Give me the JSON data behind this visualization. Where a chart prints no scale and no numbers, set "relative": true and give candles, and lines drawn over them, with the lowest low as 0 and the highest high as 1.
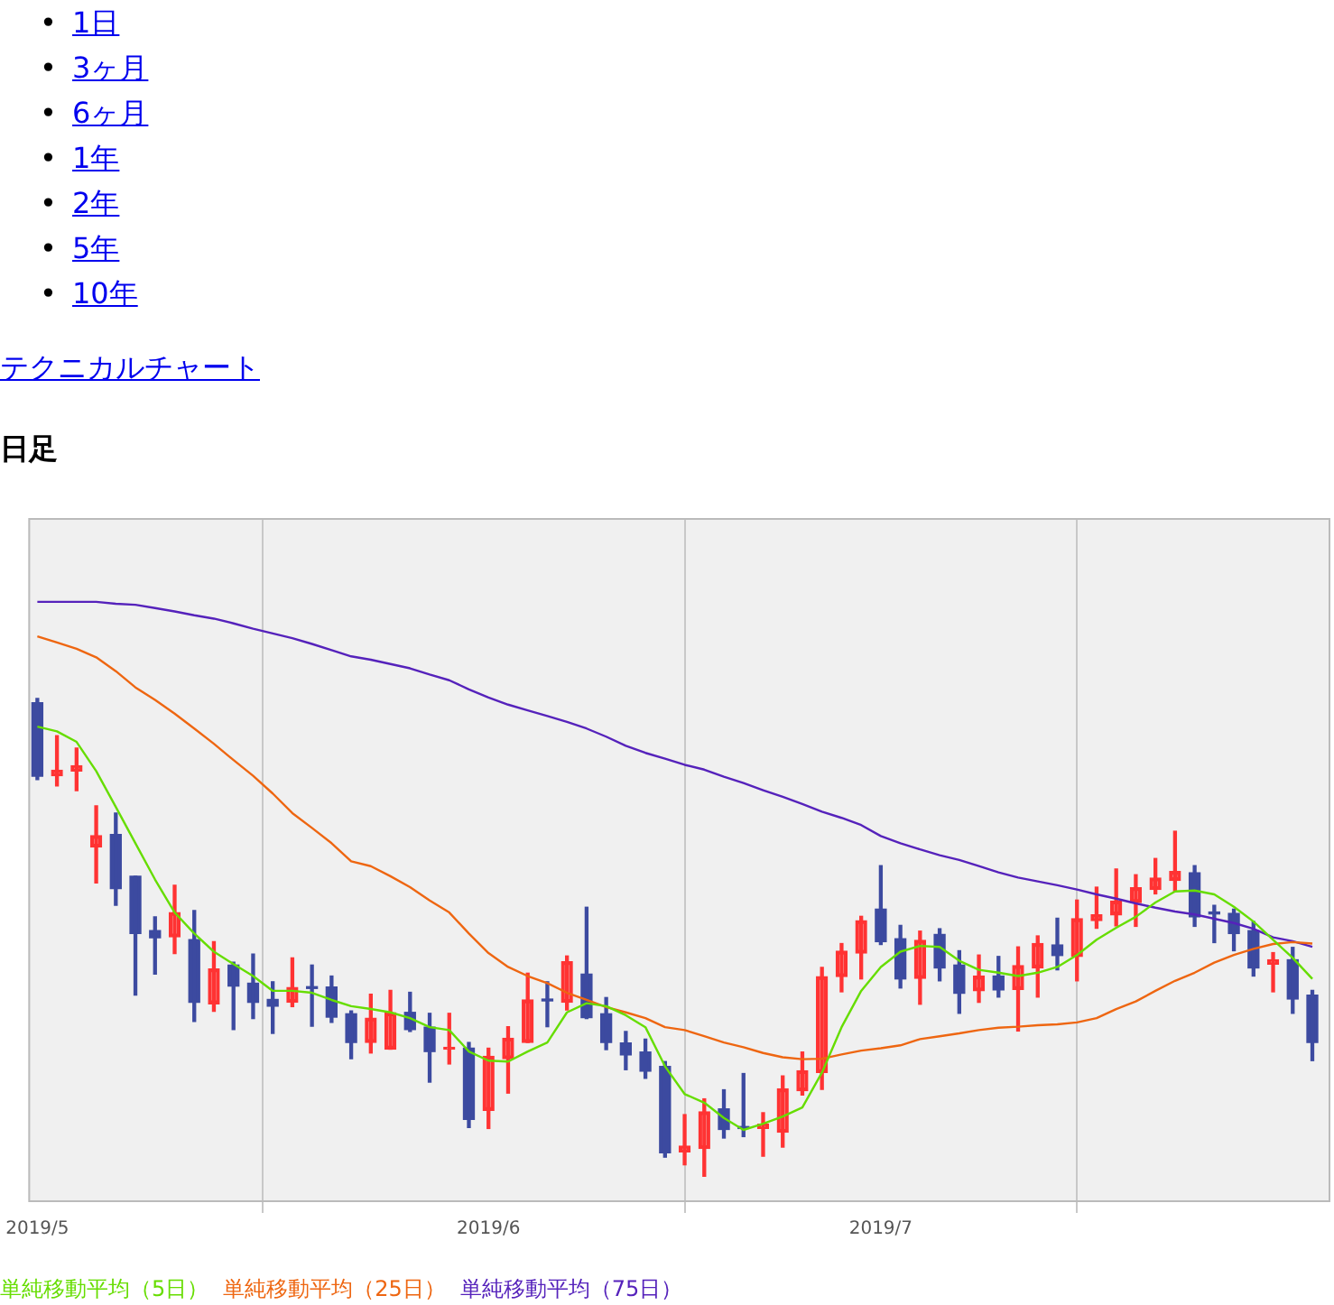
{
  "chart_data": {
    "type": "candlestick",
    "title": "日足",
    "subtitle": "テクニカルチャート",
    "annotations": [
      "• 1日",
      "• 3ヶ月",
      "• 6ヶ月",
      "• 1年",
      "• 2年",
      "• 5年",
      "• 10年"
    ],
    "relative": true,
    "grid": "x",
    "legend": "bottom",
    "categories": [
      "2019/5",
      null,
      null,
      null,
      null,
      null,
      null,
      null,
      null,
      null,
      null,
      null,
      null,
      null,
      null,
      null,
      null,
      null,
      null,
      null,
      null,
      null,
      null,
      "2019/6",
      null,
      null,
      null,
      null,
      null,
      null,
      null,
      null,
      null,
      null,
      null,
      null,
      null,
      null,
      null,
      null,
      null,
      null,
      null,
      "2019/7",
      null,
      null,
      null,
      null,
      null,
      null,
      null,
      null,
      null,
      null,
      null,
      null,
      null,
      null,
      null,
      null,
      null,
      null,
      null,
      null,
      null,
      null
    ],
    "ohlc": [
      [
        0.991,
        1.0,
        0.83,
        0.837
      ],
      [
        0.838,
        0.922,
        0.817,
        0.85
      ],
      [
        0.848,
        0.896,
        0.807,
        0.859
      ],
      [
        0.689,
        0.775,
        0.614,
        0.713
      ],
      [
        0.715,
        0.76,
        0.567,
        0.602
      ],
      [
        0.628,
        0.628,
        0.379,
        0.508
      ],
      [
        0.514,
        0.543,
        0.423,
        0.499
      ],
      [
        0.501,
        0.609,
        0.466,
        0.552
      ],
      [
        0.495,
        0.556,
        0.324,
        0.364
      ],
      [
        0.361,
        0.491,
        0.345,
        0.434
      ],
      [
        0.442,
        0.448,
        0.307,
        0.398
      ],
      [
        0.404,
        0.465,
        0.33,
        0.364
      ],
      [
        0.37,
        0.407,
        0.299,
        0.356
      ],
      [
        0.364,
        0.457,
        0.355,
        0.395
      ],
      [
        0.396,
        0.442,
        0.314,
        0.393
      ],
      [
        0.396,
        0.419,
        0.322,
        0.333
      ],
      [
        0.34,
        0.346,
        0.246,
        0.28
      ],
      [
        0.28,
        0.381,
        0.258,
        0.331
      ],
      [
        0.266,
        0.389,
        0.266,
        0.342
      ],
      [
        0.343,
        0.385,
        0.303,
        0.307
      ],
      [
        0.312,
        0.341,
        0.197,
        0.261
      ],
      [
        0.266,
        0.341,
        0.235,
        0.269
      ],
      [
        0.268,
        0.28,
        0.102,
        0.119
      ],
      [
        0.138,
        0.268,
        0.1,
        0.251
      ],
      [
        0.246,
        0.313,
        0.174,
        0.289
      ],
      [
        0.28,
        0.425,
        0.28,
        0.369
      ],
      [
        0.37,
        0.407,
        0.313,
        0.367
      ],
      [
        0.364,
        0.461,
        0.348,
        0.449
      ],
      [
        0.423,
        0.563,
        0.33,
        0.332
      ],
      [
        0.34,
        0.374,
        0.265,
        0.28
      ],
      [
        0.279,
        0.303,
        0.223,
        0.254
      ],
      [
        0.26,
        0.287,
        0.205,
        0.22
      ],
      [
        0.23,
        0.24,
        0.04,
        0.049
      ],
      [
        0.051,
        0.129,
        0.024,
        0.063
      ],
      [
        0.058,
        0.162,
        0.0,
        0.135
      ],
      [
        0.141,
        0.181,
        0.08,
        0.098
      ],
      [
        0.104,
        0.215,
        0.083,
        0.1
      ],
      [
        0.1,
        0.133,
        0.042,
        0.109
      ],
      [
        0.092,
        0.21,
        0.061,
        0.183
      ],
      [
        0.179,
        0.26,
        0.17,
        0.221
      ],
      [
        0.217,
        0.437,
        0.182,
        0.418
      ],
      [
        0.418,
        0.487,
        0.386,
        0.471
      ],
      [
        0.467,
        0.544,
        0.413,
        0.535
      ],
      [
        0.559,
        0.65,
        0.485,
        0.491
      ],
      [
        0.497,
        0.525,
        0.394,
        0.413
      ],
      [
        0.414,
        0.513,
        0.36,
        0.494
      ],
      [
        0.506,
        0.518,
        0.409,
        0.436
      ],
      [
        0.442,
        0.472,
        0.341,
        0.383
      ],
      [
        0.388,
        0.463,
        0.364,
        0.419
      ],
      [
        0.419,
        0.46,
        0.375,
        0.39
      ],
      [
        0.391,
        0.48,
        0.304,
        0.441
      ],
      [
        0.436,
        0.503,
        0.375,
        0.487
      ],
      [
        0.484,
        0.54,
        0.432,
        0.462
      ],
      [
        0.46,
        0.578,
        0.409,
        0.539
      ],
      [
        0.535,
        0.605,
        0.519,
        0.547
      ],
      [
        0.547,
        0.643,
        0.524,
        0.576
      ],
      [
        0.573,
        0.631,
        0.523,
        0.604
      ],
      [
        0.6,
        0.665,
        0.591,
        0.624
      ],
      [
        0.619,
        0.722,
        0.597,
        0.638
      ],
      [
        0.635,
        0.65,
        0.523,
        0.543
      ],
      [
        0.553,
        0.567,
        0.489,
        0.549
      ],
      [
        0.55,
        0.559,
        0.472,
        0.508
      ],
      [
        0.514,
        0.533,
        0.419,
        0.436
      ],
      [
        0.444,
        0.468,
        0.386,
        0.453
      ],
      [
        0.453,
        0.479,
        0.341,
        0.371
      ],
      [
        0.379,
        0.389,
        0.242,
        0.28
      ]
    ],
    "colors": [
      "#3c4aa0",
      "#ff3333",
      "#ff3333",
      "#ff3333",
      "#3c4aa0",
      "#3c4aa0",
      "#3c4aa0",
      "#ff3333",
      "#3c4aa0",
      "#ff3333",
      "#3c4aa0",
      "#3c4aa0",
      "#3c4aa0",
      "#ff3333",
      "#3c4aa0",
      "#3c4aa0",
      "#3c4aa0",
      "#ff3333",
      "#ff3333",
      "#3c4aa0",
      "#3c4aa0",
      "#ff3333",
      "#3c4aa0",
      "#ff3333",
      "#ff3333",
      "#ff3333",
      "#3c4aa0",
      "#ff3333",
      "#3c4aa0",
      "#3c4aa0",
      "#3c4aa0",
      "#3c4aa0",
      "#3c4aa0",
      "#ff3333",
      "#ff3333",
      "#3c4aa0",
      "#3c4aa0",
      "#ff3333",
      "#ff3333",
      "#ff3333",
      "#ff3333",
      "#ff3333",
      "#ff3333",
      "#3c4aa0",
      "#3c4aa0",
      "#ff3333",
      "#3c4aa0",
      "#3c4aa0",
      "#ff3333",
      "#3c4aa0",
      "#ff3333",
      "#ff3333",
      "#3c4aa0",
      "#ff3333",
      "#ff3333",
      "#ff3333",
      "#ff3333",
      "#ff3333",
      "#ff3333",
      "#3c4aa0",
      "#3c4aa0",
      "#3c4aa0",
      "#3c4aa0",
      "#ff3333",
      "#3c4aa0",
      "#3c4aa0"
    ],
    "series": [
      {
        "type": "line",
        "name": "単純移動平均（5日）",
        "color": "#66dd00",
        "values": [
          0.941,
          0.931,
          0.909,
          0.848,
          0.773,
          0.697,
          0.621,
          0.552,
          0.508,
          0.47,
          0.444,
          0.419,
          0.388,
          0.388,
          0.384,
          0.369,
          0.356,
          0.35,
          0.343,
          0.331,
          0.312,
          0.306,
          0.261,
          0.242,
          0.24,
          0.261,
          0.28,
          0.343,
          0.362,
          0.356,
          0.337,
          0.312,
          0.23,
          0.172,
          0.154,
          0.122,
          0.097,
          0.11,
          0.125,
          0.144,
          0.217,
          0.312,
          0.388,
          0.438,
          0.47,
          0.482,
          0.48,
          0.451,
          0.432,
          0.426,
          0.419,
          0.426,
          0.438,
          0.463,
          0.495,
          0.52,
          0.543,
          0.573,
          0.596,
          0.598,
          0.59,
          0.564,
          0.533,
          0.495,
          0.457,
          0.413
        ]
      },
      {
        "type": "line",
        "name": "単純移動平均（25日）",
        "color": "#ee6611",
        "values": [
          1.13,
          1.117,
          1.104,
          1.086,
          1.057,
          1.023,
          0.997,
          0.968,
          0.937,
          0.905,
          0.871,
          0.838,
          0.801,
          0.76,
          0.729,
          0.697,
          0.659,
          0.649,
          0.628,
          0.605,
          0.577,
          0.552,
          0.508,
          0.467,
          0.438,
          0.419,
          0.404,
          0.384,
          0.369,
          0.354,
          0.343,
          0.331,
          0.312,
          0.306,
          0.293,
          0.28,
          0.27,
          0.258,
          0.249,
          0.245,
          0.246,
          0.255,
          0.263,
          0.268,
          0.274,
          0.287,
          0.293,
          0.299,
          0.306,
          0.311,
          0.313,
          0.316,
          0.318,
          0.322,
          0.331,
          0.35,
          0.366,
          0.388,
          0.409,
          0.426,
          0.447,
          0.463,
          0.476,
          0.486,
          0.49,
          0.487
        ]
      },
      {
        "type": "line",
        "name": "単純移動平均（75日）",
        "color": "#5522bb",
        "values": [
          1.202,
          1.202,
          1.202,
          1.202,
          1.198,
          1.196,
          1.189,
          1.182,
          1.174,
          1.167,
          1.157,
          1.146,
          1.136,
          1.126,
          1.114,
          1.101,
          1.088,
          1.081,
          1.072,
          1.063,
          1.05,
          1.038,
          1.019,
          1.002,
          0.987,
          0.975,
          0.963,
          0.951,
          0.937,
          0.92,
          0.901,
          0.886,
          0.874,
          0.861,
          0.851,
          0.836,
          0.823,
          0.808,
          0.794,
          0.779,
          0.763,
          0.75,
          0.735,
          0.712,
          0.697,
          0.684,
          0.672,
          0.662,
          0.649,
          0.636,
          0.625,
          0.617,
          0.609,
          0.6,
          0.59,
          0.581,
          0.571,
          0.562,
          0.554,
          0.548,
          0.539,
          0.53,
          0.518,
          0.5,
          0.492,
          0.48
        ]
      }
    ]
  }
}
